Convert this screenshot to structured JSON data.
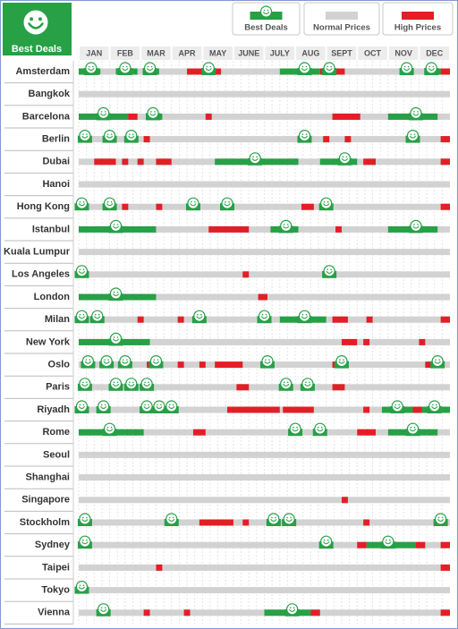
{
  "chart_data": {
    "type": "timeline",
    "header": "Best Deals",
    "categories": [
      "JAN",
      "FEB",
      "MAR",
      "APR",
      "MAY",
      "JUNE",
      "JULY",
      "AUG",
      "SEPT",
      "OCT",
      "NOV",
      "DEC"
    ],
    "xlim": [
      0,
      12
    ],
    "series": [
      {
        "name": "Best Deals",
        "color": "#27a046"
      },
      {
        "name": "Normal Prices",
        "color": "#d2d2d2"
      },
      {
        "name": "High Prices",
        "color": "#e31e26"
      }
    ],
    "rows": [
      {
        "name": "Amsterdam",
        "best": [
          [
            0,
            0.7
          ],
          [
            1.2,
            1.9
          ],
          [
            2.1,
            2.6
          ],
          [
            6.5,
            7.8
          ],
          [
            11.2,
            11.7
          ]
        ],
        "high": [
          [
            3.5,
            4.6
          ],
          [
            7.8,
            8.0
          ],
          [
            8.3,
            8.6
          ],
          [
            11.7,
            12
          ]
        ],
        "deals": [
          0.4,
          1.5,
          2.3,
          4.2,
          7.3,
          8.1,
          10.6,
          11.4
        ]
      },
      {
        "name": "Bangkok",
        "best": [],
        "high": [],
        "deals": []
      },
      {
        "name": "Barcelona",
        "best": [
          [
            0,
            1.6
          ],
          [
            2.2,
            2.7
          ],
          [
            10.0,
            11.6
          ]
        ],
        "high": [
          [
            1.6,
            1.9
          ],
          [
            4.1,
            4.3
          ],
          [
            8.2,
            9.1
          ]
        ],
        "deals": [
          0.8,
          2.4,
          10.9
        ]
      },
      {
        "name": "Berlin",
        "best": [],
        "high": [
          [
            2.1,
            2.3
          ],
          [
            7.9,
            8.1
          ],
          [
            8.6,
            8.8
          ],
          [
            11.7,
            12
          ]
        ],
        "deals": [
          0.2,
          1.0,
          1.7,
          7.3,
          10.8
        ]
      },
      {
        "name": "Dubai",
        "best": [
          [
            4.4,
            7.1
          ],
          [
            7.8,
            9.0
          ]
        ],
        "high": [
          [
            0.5,
            1.2
          ],
          [
            1.4,
            1.6
          ],
          [
            1.9,
            2.1
          ],
          [
            2.5,
            3.0
          ],
          [
            9.2,
            9.6
          ],
          [
            11.7,
            12
          ]
        ],
        "deals": [
          5.7,
          8.6
        ]
      },
      {
        "name": "Hanoi",
        "best": [],
        "high": [],
        "deals": []
      },
      {
        "name": "Hong Kong",
        "best": [],
        "high": [
          [
            1.4,
            1.6
          ],
          [
            2.5,
            2.7
          ],
          [
            7.2,
            7.6
          ],
          [
            11.7,
            12
          ]
        ],
        "deals": [
          0.1,
          1.0,
          3.7,
          4.8,
          8.0
        ]
      },
      {
        "name": "Istanbul",
        "best": [
          [
            0,
            2.5
          ],
          [
            6.2,
            7.1
          ],
          [
            10.0,
            11.6
          ]
        ],
        "high": [
          [
            4.2,
            5.5
          ],
          [
            8.3,
            8.5
          ]
        ],
        "deals": [
          1.2,
          6.7,
          10.9
        ]
      },
      {
        "name": "Kuala Lumpur",
        "best": [],
        "high": [],
        "deals": []
      },
      {
        "name": "Los Angeles",
        "best": [],
        "high": [
          [
            5.3,
            5.5
          ]
        ],
        "deals": [
          0.1,
          8.1
        ]
      },
      {
        "name": "London",
        "best": [
          [
            0,
            2.5
          ]
        ],
        "high": [
          [
            5.8,
            6.1
          ]
        ],
        "deals": [
          1.2
        ]
      },
      {
        "name": "Milan",
        "best": [
          [
            6.5,
            8.0
          ]
        ],
        "high": [
          [
            1.9,
            2.1
          ],
          [
            3.2,
            3.4
          ],
          [
            8.2,
            8.7
          ],
          [
            9.3,
            9.5
          ],
          [
            11.7,
            12
          ]
        ],
        "deals": [
          0.1,
          0.6,
          3.9,
          6.0,
          7.3
        ]
      },
      {
        "name": "New York",
        "best": [
          [
            0,
            2.3
          ]
        ],
        "high": [
          [
            8.5,
            9.0
          ],
          [
            9.2,
            9.4
          ],
          [
            11.0,
            11.2
          ]
        ],
        "deals": [
          1.2
        ]
      },
      {
        "name": "Oslo",
        "best": [],
        "high": [
          [
            1.3,
            1.5
          ],
          [
            2.2,
            2.4
          ],
          [
            3.2,
            3.4
          ],
          [
            3.9,
            4.1
          ],
          [
            4.4,
            5.3
          ],
          [
            8.2,
            8.4
          ],
          [
            11.2,
            11.4
          ]
        ],
        "deals": [
          0.3,
          0.9,
          1.5,
          2.5,
          6.1,
          8.5,
          11.6
        ]
      },
      {
        "name": "Paris",
        "best": [],
        "high": [
          [
            5.1,
            5.5
          ],
          [
            8.2,
            8.6
          ]
        ],
        "deals": [
          0.2,
          1.2,
          1.7,
          2.2,
          6.7,
          7.4
        ]
      },
      {
        "name": "Riyadh",
        "best": [
          [
            9.8,
            10.8
          ],
          [
            11.1,
            12
          ]
        ],
        "high": [
          [
            4.8,
            6.5
          ],
          [
            6.6,
            7.6
          ],
          [
            9.2,
            9.4
          ],
          [
            10.8,
            11.1
          ]
        ],
        "deals": [
          0.1,
          0.8,
          2.2,
          2.6,
          3.0,
          10.3,
          11.5
        ]
      },
      {
        "name": "Rome",
        "best": [
          [
            0,
            2.1
          ],
          [
            10.0,
            11.6
          ]
        ],
        "high": [
          [
            3.7,
            4.1
          ],
          [
            9.0,
            9.6
          ]
        ],
        "deals": [
          1.0,
          7.0,
          7.8,
          10.8
        ]
      },
      {
        "name": "Seoul",
        "best": [],
        "high": [],
        "deals": []
      },
      {
        "name": "Shanghai",
        "best": [],
        "high": [],
        "deals": []
      },
      {
        "name": "Singapore",
        "best": [],
        "high": [
          [
            8.5,
            8.7
          ]
        ],
        "deals": []
      },
      {
        "name": "Stockholm",
        "best": [],
        "high": [
          [
            3.9,
            5.0
          ],
          [
            5.3,
            5.5
          ],
          [
            9.2,
            9.4
          ]
        ],
        "deals": [
          0.2,
          3.0,
          6.3,
          6.8,
          11.7
        ]
      },
      {
        "name": "Sydney",
        "best": [
          [
            9.3,
            10.9
          ]
        ],
        "high": [
          [
            9.0,
            9.3
          ],
          [
            10.9,
            11.2
          ],
          [
            11.7,
            12
          ]
        ],
        "deals": [
          0.2,
          8.0,
          10.0
        ]
      },
      {
        "name": "Taipei",
        "best": [],
        "high": [
          [
            2.5,
            2.7
          ],
          [
            11.7,
            12
          ]
        ],
        "deals": []
      },
      {
        "name": "Tokyo",
        "best": [],
        "high": [],
        "deals": [
          0.1
        ]
      },
      {
        "name": "Vienna",
        "best": [
          [
            6.0,
            7.5
          ]
        ],
        "high": [
          [
            2.1,
            2.3
          ],
          [
            3.4,
            3.6
          ],
          [
            7.5,
            7.8
          ],
          [
            11.7,
            12
          ]
        ],
        "deals": [
          0.8,
          6.9
        ]
      }
    ]
  }
}
